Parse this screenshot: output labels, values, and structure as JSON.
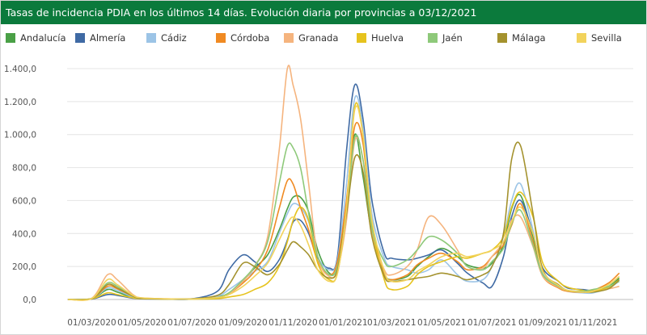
{
  "header": {
    "title": "Tasas de incidencia PDIA en los últimos 14 días. Evolución diaria por provincias a 03/12/2021"
  },
  "chart_data": {
    "type": "line",
    "title": "Tasas de incidencia PDIA en los últimos 14 días. Evolución diaria por provincias a 03/12/2021",
    "xlabel": "",
    "ylabel": "",
    "ylim": [
      0,
      1400
    ],
    "grid": true,
    "legend_position": "top",
    "y_ticks": [
      "0,0",
      "200,0",
      "400,0",
      "600,0",
      "800,0",
      "1.000,0",
      "1.200,0",
      "1.400,0"
    ],
    "x_ticks": [
      "01/03/2020",
      "01/05/2020",
      "01/07/2020",
      "01/09/2020",
      "01/11/2020",
      "01/01/2021",
      "01/03/2021",
      "01/05/2021",
      "01/07/2021",
      "01/09/2021",
      "01/11/2021"
    ],
    "x": [
      "2020-02-01",
      "2020-03-01",
      "2020-03-20",
      "2020-04-01",
      "2020-04-20",
      "2020-05-01",
      "2020-06-01",
      "2020-07-01",
      "2020-08-01",
      "2020-08-15",
      "2020-09-01",
      "2020-09-15",
      "2020-10-01",
      "2020-10-15",
      "2020-10-25",
      "2020-11-01",
      "2020-11-10",
      "2020-11-20",
      "2020-12-01",
      "2020-12-15",
      "2020-12-25",
      "2021-01-05",
      "2021-01-15",
      "2021-01-25",
      "2021-02-05",
      "2021-02-20",
      "2021-03-01",
      "2021-03-20",
      "2021-04-01",
      "2021-04-15",
      "2021-05-01",
      "2021-05-20",
      "2021-06-01",
      "2021-06-20",
      "2021-07-01",
      "2021-07-15",
      "2021-07-25",
      "2021-08-05",
      "2021-08-20",
      "2021-09-01",
      "2021-09-20",
      "2021-10-01",
      "2021-10-20",
      "2021-11-01",
      "2021-11-20",
      "2021-12-03"
    ],
    "series": [
      {
        "name": "Andalucía",
        "color": "#4aa046",
        "values": [
          0,
          5,
          60,
          45,
          12,
          6,
          3,
          3,
          15,
          40,
          110,
          190,
          270,
          420,
          550,
          620,
          620,
          530,
          300,
          160,
          200,
          550,
          1000,
          750,
          400,
          160,
          120,
          140,
          200,
          260,
          310,
          260,
          210,
          190,
          220,
          330,
          550,
          630,
          380,
          160,
          80,
          55,
          45,
          55,
          80,
          130
        ]
      },
      {
        "name": "Almería",
        "color": "#3f6aa4",
        "values": [
          0,
          3,
          30,
          25,
          8,
          4,
          2,
          4,
          50,
          180,
          270,
          230,
          170,
          240,
          360,
          470,
          480,
          400,
          250,
          190,
          260,
          900,
          1300,
          1100,
          600,
          280,
          250,
          240,
          250,
          270,
          300,
          220,
          160,
          100,
          80,
          260,
          500,
          600,
          400,
          190,
          110,
          70,
          60,
          55,
          70,
          120
        ]
      },
      {
        "name": "Cádiz",
        "color": "#9cc4e6",
        "values": [
          0,
          5,
          70,
          55,
          15,
          6,
          3,
          4,
          20,
          60,
          120,
          170,
          230,
          400,
          520,
          580,
          560,
          470,
          260,
          180,
          240,
          700,
          1220,
          1050,
          520,
          250,
          200,
          180,
          160,
          180,
          240,
          150,
          110,
          120,
          200,
          380,
          600,
          700,
          420,
          160,
          80,
          50,
          40,
          40,
          70,
          110
        ]
      },
      {
        "name": "Córdoba",
        "color": "#f08a22",
        "values": [
          0,
          6,
          80,
          65,
          20,
          8,
          3,
          3,
          10,
          35,
          100,
          170,
          300,
          550,
          720,
          700,
          560,
          420,
          230,
          150,
          230,
          600,
          1050,
          950,
          450,
          160,
          120,
          150,
          210,
          250,
          280,
          230,
          180,
          200,
          260,
          330,
          450,
          580,
          350,
          140,
          70,
          50,
          45,
          55,
          100,
          160
        ]
      },
      {
        "name": "Granada",
        "color": "#f5b47e",
        "values": [
          0,
          8,
          150,
          120,
          30,
          10,
          4,
          3,
          12,
          35,
          110,
          200,
          380,
          900,
          1400,
          1300,
          1100,
          700,
          260,
          140,
          180,
          480,
          960,
          850,
          400,
          180,
          150,
          200,
          300,
          500,
          450,
          300,
          200,
          190,
          260,
          350,
          480,
          500,
          320,
          140,
          75,
          55,
          50,
          60,
          65,
          80
        ]
      },
      {
        "name": "Huelva",
        "color": "#e6c31e",
        "values": [
          0,
          4,
          40,
          30,
          10,
          5,
          2,
          2,
          5,
          15,
          30,
          60,
          100,
          200,
          350,
          480,
          560,
          480,
          220,
          120,
          160,
          550,
          1170,
          1000,
          450,
          120,
          60,
          80,
          150,
          200,
          230,
          260,
          250,
          280,
          300,
          380,
          560,
          650,
          500,
          220,
          110,
          75,
          55,
          50,
          75,
          120
        ]
      },
      {
        "name": "Jaén",
        "color": "#8ec97a",
        "values": [
          0,
          6,
          100,
          80,
          20,
          8,
          3,
          3,
          12,
          40,
          120,
          200,
          350,
          700,
          930,
          920,
          800,
          520,
          260,
          150,
          200,
          520,
          980,
          850,
          430,
          230,
          200,
          240,
          300,
          380,
          360,
          280,
          200,
          180,
          230,
          310,
          460,
          540,
          330,
          150,
          80,
          55,
          50,
          60,
          80,
          110
        ]
      },
      {
        "name": "Málaga",
        "color": "#a4922e",
        "values": [
          0,
          5,
          90,
          70,
          20,
          7,
          3,
          4,
          25,
          90,
          220,
          200,
          150,
          210,
          300,
          350,
          320,
          270,
          180,
          130,
          180,
          520,
          860,
          780,
          380,
          140,
          110,
          120,
          130,
          140,
          160,
          140,
          120,
          150,
          200,
          400,
          850,
          930,
          520,
          180,
          90,
          55,
          45,
          45,
          65,
          120
        ]
      },
      {
        "name": "Sevilla",
        "color": "#f2d35c",
        "values": [
          0,
          6,
          120,
          90,
          25,
          10,
          4,
          3,
          12,
          30,
          80,
          140,
          220,
          360,
          460,
          500,
          450,
          330,
          180,
          110,
          160,
          550,
          1150,
          1000,
          480,
          170,
          110,
          120,
          170,
          210,
          260,
          280,
          260,
          280,
          300,
          350,
          470,
          560,
          400,
          170,
          85,
          55,
          45,
          50,
          90,
          140
        ]
      }
    ]
  }
}
